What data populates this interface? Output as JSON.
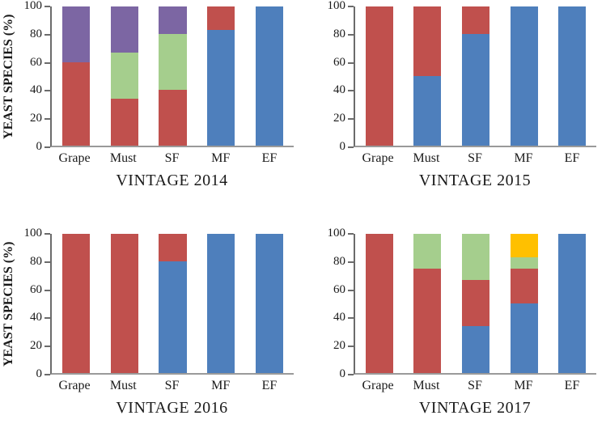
{
  "figure": {
    "description": "Stacked bar charts of yeast species percentages across winemaking stages for four vintages",
    "y_axis_title": "YEAST SPECIES (%)"
  },
  "chart_data": [
    {
      "type": "bar",
      "stacked": true,
      "title": "VINTAGE 2014",
      "xlabel": "",
      "ylabel": "YEAST SPECIES (%)",
      "categories": [
        "Grape",
        "Must",
        "SF",
        "MF",
        "EF"
      ],
      "ylim": [
        0,
        100
      ],
      "yticks": [
        0,
        20,
        40,
        60,
        80,
        100
      ],
      "grid": false,
      "legend_position": "none",
      "series": [
        {
          "name": "species-blue",
          "color": "#4E7FBC",
          "values": [
            0,
            0,
            0,
            83,
            100
          ]
        },
        {
          "name": "species-red",
          "color": "#C0504D",
          "values": [
            60,
            34,
            40,
            17,
            0
          ]
        },
        {
          "name": "species-green",
          "color": "#A5CE8D",
          "values": [
            0,
            33,
            40,
            0,
            0
          ]
        },
        {
          "name": "species-purple",
          "color": "#7C66A3",
          "values": [
            40,
            33,
            20,
            0,
            0
          ]
        },
        {
          "name": "species-gold",
          "color": "#FFC000",
          "values": [
            0,
            0,
            0,
            0,
            0
          ]
        }
      ]
    },
    {
      "type": "bar",
      "stacked": true,
      "title": "VINTAGE 2015",
      "xlabel": "",
      "ylabel": "",
      "categories": [
        "Grape",
        "Must",
        "SF",
        "MF",
        "EF"
      ],
      "ylim": [
        0,
        100
      ],
      "yticks": [
        0,
        20,
        40,
        60,
        80,
        100
      ],
      "grid": false,
      "legend_position": "none",
      "series": [
        {
          "name": "species-blue",
          "color": "#4E7FBC",
          "values": [
            0,
            50,
            80,
            100,
            100
          ]
        },
        {
          "name": "species-red",
          "color": "#C0504D",
          "values": [
            100,
            50,
            20,
            0,
            0
          ]
        },
        {
          "name": "species-green",
          "color": "#A5CE8D",
          "values": [
            0,
            0,
            0,
            0,
            0
          ]
        },
        {
          "name": "species-purple",
          "color": "#7C66A3",
          "values": [
            0,
            0,
            0,
            0,
            0
          ]
        },
        {
          "name": "species-gold",
          "color": "#FFC000",
          "values": [
            0,
            0,
            0,
            0,
            0
          ]
        }
      ]
    },
    {
      "type": "bar",
      "stacked": true,
      "title": "VINTAGE 2016",
      "xlabel": "",
      "ylabel": "YEAST SPECIES (%)",
      "categories": [
        "Grape",
        "Must",
        "SF",
        "MF",
        "EF"
      ],
      "ylim": [
        0,
        100
      ],
      "yticks": [
        0,
        20,
        40,
        60,
        80,
        100
      ],
      "grid": false,
      "legend_position": "none",
      "series": [
        {
          "name": "species-blue",
          "color": "#4E7FBC",
          "values": [
            0,
            0,
            80,
            100,
            100
          ]
        },
        {
          "name": "species-red",
          "color": "#C0504D",
          "values": [
            100,
            100,
            20,
            0,
            0
          ]
        },
        {
          "name": "species-green",
          "color": "#A5CE8D",
          "values": [
            0,
            0,
            0,
            0,
            0
          ]
        },
        {
          "name": "species-purple",
          "color": "#7C66A3",
          "values": [
            0,
            0,
            0,
            0,
            0
          ]
        },
        {
          "name": "species-gold",
          "color": "#FFC000",
          "values": [
            0,
            0,
            0,
            0,
            0
          ]
        }
      ]
    },
    {
      "type": "bar",
      "stacked": true,
      "title": "VINTAGE 2017",
      "xlabel": "",
      "ylabel": "",
      "categories": [
        "Grape",
        "Must",
        "SF",
        "MF",
        "EF"
      ],
      "ylim": [
        0,
        100
      ],
      "yticks": [
        0,
        20,
        40,
        60,
        80,
        100
      ],
      "grid": false,
      "legend_position": "none",
      "series": [
        {
          "name": "species-blue",
          "color": "#4E7FBC",
          "values": [
            0,
            0,
            34,
            50,
            100
          ]
        },
        {
          "name": "species-red",
          "color": "#C0504D",
          "values": [
            100,
            75,
            33,
            25,
            0
          ]
        },
        {
          "name": "species-green",
          "color": "#A5CE8D",
          "values": [
            0,
            25,
            33,
            8,
            0
          ]
        },
        {
          "name": "species-purple",
          "color": "#7C66A3",
          "values": [
            0,
            0,
            0,
            0,
            0
          ]
        },
        {
          "name": "species-gold",
          "color": "#FFC000",
          "values": [
            0,
            0,
            0,
            17,
            0
          ]
        }
      ]
    }
  ]
}
